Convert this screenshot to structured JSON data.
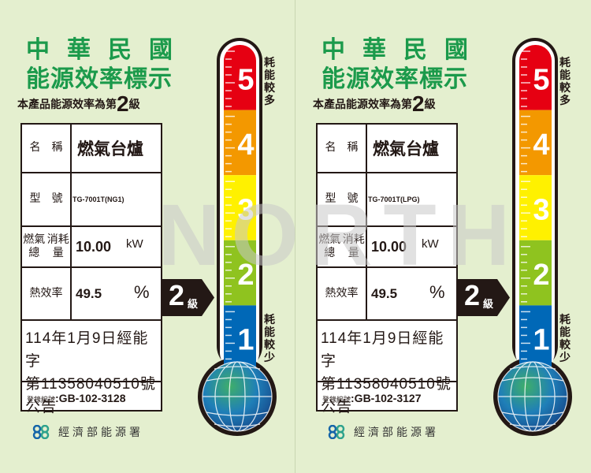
{
  "watermark": "NORTH",
  "colors": {
    "title_green": "#1b9a4b",
    "level5": "#e60012",
    "level4": "#f39800",
    "level3": "#fff100",
    "level2": "#8fc31f",
    "level1": "#0068b7"
  },
  "labels": [
    {
      "title1": "中華民國",
      "title2": "能源效率標示",
      "subtitle_pre": "本產品能源效率為第",
      "subtitle_grade": "2",
      "subtitle_post": "級",
      "name_key": "名　稱",
      "name_value": "燃氣台爐",
      "model_key": "型　號",
      "model_value": "TG-7001T(NG1)",
      "consumption_key1": "燃氣總",
      "consumption_key2": "消耗量",
      "consumption_value": "10.00",
      "consumption_unit": "kW",
      "efficiency_key": "熱效率",
      "efficiency_value": "49.5",
      "efficiency_unit": "%",
      "announcement1": "114年1月9日經能字",
      "announcement2": "第11358040510號公告",
      "reg_key": "登錄編號",
      "reg_value": ":GB-102-3128",
      "arrow_grade": "2",
      "arrow_level": "級",
      "scale": [
        "5",
        "4",
        "3",
        "2",
        "1"
      ],
      "more": "耗能較多",
      "less": "耗能較少",
      "footer": "經濟部能源署",
      "grade": 2
    },
    {
      "title1": "中華民國",
      "title2": "能源效率標示",
      "subtitle_pre": "本產品能源效率為第",
      "subtitle_grade": "2",
      "subtitle_post": "級",
      "name_key": "名　稱",
      "name_value": "燃氣台爐",
      "model_key": "型　號",
      "model_value": "TG-7001T(LPG)",
      "consumption_key1": "燃氣總",
      "consumption_key2": "消耗量",
      "consumption_value": "10.00",
      "consumption_unit": "kW",
      "efficiency_key": "熱效率",
      "efficiency_value": "49.5",
      "efficiency_unit": "%",
      "announcement1": "114年1月9日經能字",
      "announcement2": "第11358040510號公告",
      "reg_key": "登錄編號",
      "reg_value": ":GB-102-3127",
      "arrow_grade": "2",
      "arrow_level": "級",
      "scale": [
        "5",
        "4",
        "3",
        "2",
        "1"
      ],
      "more": "耗能較多",
      "less": "耗能較少",
      "footer": "經濟部能源署",
      "grade": 2
    }
  ]
}
